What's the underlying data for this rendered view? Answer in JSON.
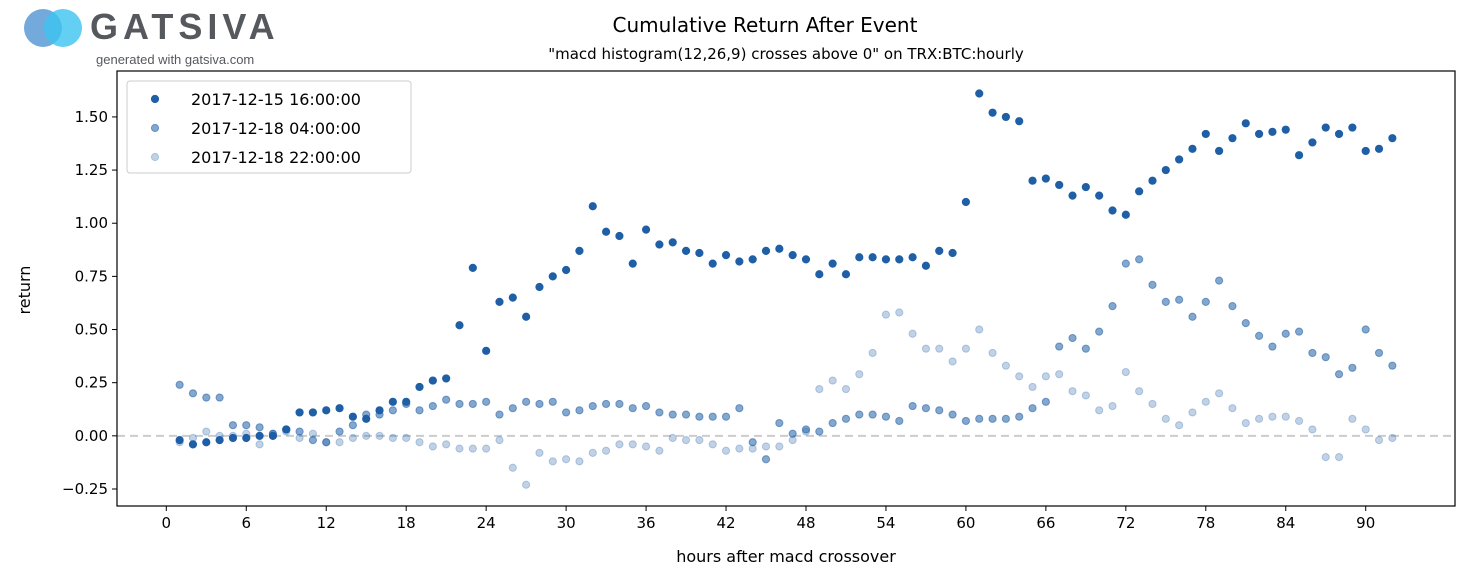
{
  "logo": {
    "name": "GATSIVA",
    "tagline": "generated with gatsiva.com"
  },
  "chart_data": {
    "type": "scatter",
    "title": "Cumulative Return After Event",
    "subtitle": "\"macd histogram(12,26,9) crosses above 0\" on TRX:BTC:hourly",
    "xlabel": "hours after macd crossover",
    "ylabel": "return",
    "xlim": [
      -3.7,
      96.7
    ],
    "ylim": [
      -0.33,
      1.716
    ],
    "xticks": [
      0,
      6,
      12,
      18,
      24,
      30,
      36,
      42,
      48,
      54,
      60,
      66,
      72,
      78,
      84,
      90
    ],
    "xtick_labels": [
      "0",
      "6",
      "12",
      "18",
      "24",
      "30",
      "36",
      "42",
      "48",
      "54",
      "60",
      "66",
      "72",
      "78",
      "84",
      "90"
    ],
    "yticks": [
      -0.25,
      0,
      0.25,
      0.5,
      0.75,
      1.0,
      1.25,
      1.5
    ],
    "ytick_labels": [
      "−0.25",
      "0.00",
      "0.25",
      "0.50",
      "0.75",
      "1.00",
      "1.25",
      "1.50"
    ],
    "grid": false,
    "reference_line": {
      "y": 0,
      "style": "dashed",
      "color": "#cccccc"
    },
    "legend_placement": "top-left",
    "x": [
      1,
      2,
      3,
      4,
      5,
      6,
      7,
      8,
      9,
      10,
      11,
      12,
      13,
      14,
      15,
      16,
      17,
      18,
      19,
      20,
      21,
      22,
      23,
      24,
      25,
      26,
      27,
      28,
      29,
      30,
      31,
      32,
      33,
      34,
      35,
      36,
      37,
      38,
      39,
      40,
      41,
      42,
      43,
      44,
      45,
      46,
      47,
      48,
      49,
      50,
      51,
      52,
      53,
      54,
      55,
      56,
      57,
      58,
      59,
      60,
      61,
      62,
      63,
      64,
      65,
      66,
      67,
      68,
      69,
      70,
      71,
      72,
      73,
      74,
      75,
      76,
      77,
      78,
      79,
      80,
      81,
      82,
      83,
      84,
      85,
      86,
      87,
      88,
      89,
      90,
      91,
      92
    ],
    "series": [
      {
        "name": "2017-12-15 16:00:00",
        "color": "#1f5fa6",
        "opacity": 1.0,
        "values": [
          -0.02,
          -0.04,
          -0.03,
          -0.02,
          -0.01,
          -0.01,
          0.0,
          0.0,
          0.03,
          0.11,
          0.11,
          0.12,
          0.13,
          0.09,
          0.08,
          0.12,
          0.16,
          0.16,
          0.23,
          0.26,
          0.27,
          0.52,
          0.79,
          0.4,
          0.63,
          0.65,
          0.56,
          0.7,
          0.75,
          0.78,
          0.87,
          1.08,
          0.96,
          0.94,
          0.81,
          0.97,
          0.9,
          0.91,
          0.87,
          0.86,
          0.81,
          0.85,
          0.82,
          0.83,
          0.87,
          0.88,
          0.85,
          0.83,
          0.76,
          0.81,
          0.76,
          0.84,
          0.84,
          0.83,
          0.83,
          0.84,
          0.8,
          0.87,
          0.86,
          1.1,
          1.61,
          1.52,
          1.5,
          1.48,
          1.2,
          1.21,
          1.18,
          1.13,
          1.17,
          1.13,
          1.06,
          1.04,
          1.15,
          1.2,
          1.25,
          1.3,
          1.35,
          1.42,
          1.34,
          1.4,
          1.47,
          1.42,
          1.43,
          1.44,
          1.32,
          1.38,
          1.45,
          1.42,
          1.45,
          1.34,
          1.35,
          1.4
        ]
      },
      {
        "name": "2017-12-18 04:00:00",
        "color": "#1f5fa6",
        "opacity": 0.55,
        "values": [
          0.24,
          0.2,
          0.18,
          0.18,
          0.05,
          0.05,
          0.04,
          0.01,
          0.03,
          0.02,
          -0.02,
          -0.03,
          0.02,
          0.05,
          0.1,
          0.1,
          0.12,
          0.15,
          0.12,
          0.14,
          0.17,
          0.15,
          0.15,
          0.16,
          0.1,
          0.13,
          0.16,
          0.15,
          0.16,
          0.11,
          0.12,
          0.14,
          0.15,
          0.15,
          0.13,
          0.14,
          0.11,
          0.1,
          0.1,
          0.09,
          0.09,
          0.09,
          0.13,
          -0.03,
          -0.11,
          0.06,
          0.01,
          0.03,
          0.02,
          0.06,
          0.08,
          0.1,
          0.1,
          0.09,
          0.07,
          0.14,
          0.13,
          0.12,
          0.1,
          0.07,
          0.08,
          0.08,
          0.08,
          0.09,
          0.13,
          0.16,
          0.42,
          0.46,
          0.41,
          0.49,
          0.61,
          0.81,
          0.83,
          0.71,
          0.63,
          0.64,
          0.56,
          0.63,
          0.73,
          0.61,
          0.53,
          0.47,
          0.42,
          0.48,
          0.49,
          0.39,
          0.37,
          0.29,
          0.32,
          0.5,
          0.39,
          0.33
        ]
      },
      {
        "name": "2017-12-18 22:00:00",
        "color": "#1f5fa6",
        "opacity": 0.28,
        "values": [
          -0.03,
          -0.01,
          0.02,
          0.0,
          0.0,
          0.01,
          -0.04,
          0.01,
          0.02,
          -0.01,
          0.01,
          -0.03,
          -0.03,
          -0.01,
          0.0,
          0.0,
          -0.01,
          -0.01,
          -0.03,
          -0.05,
          -0.04,
          -0.06,
          -0.06,
          -0.06,
          -0.02,
          -0.15,
          -0.23,
          -0.08,
          -0.12,
          -0.11,
          -0.12,
          -0.08,
          -0.07,
          -0.04,
          -0.04,
          -0.05,
          -0.07,
          -0.01,
          -0.02,
          -0.02,
          -0.04,
          -0.07,
          -0.06,
          -0.06,
          -0.05,
          -0.05,
          -0.02,
          0.02,
          0.22,
          0.26,
          0.22,
          0.29,
          0.39,
          0.57,
          0.58,
          0.48,
          0.41,
          0.41,
          0.35,
          0.41,
          0.5,
          0.39,
          0.33,
          0.28,
          0.23,
          0.28,
          0.29,
          0.21,
          0.19,
          0.12,
          0.14,
          0.3,
          0.21,
          0.15,
          0.08,
          0.05,
          0.11,
          0.16,
          0.2,
          0.13,
          0.06,
          0.08,
          0.09,
          0.09,
          0.07,
          0.03,
          -0.1,
          -0.1,
          0.08,
          0.03,
          -0.02,
          -0.01
        ]
      }
    ]
  }
}
